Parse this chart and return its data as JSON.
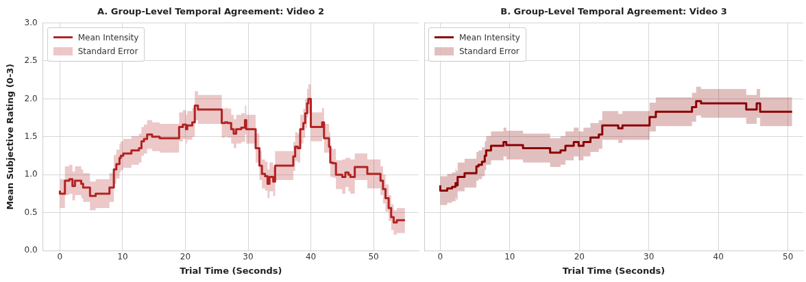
{
  "chart_data": [
    {
      "type": "step",
      "title": "A. Group-Level Temporal Agreement: Video 2",
      "xlabel": "Trial Time (Seconds)",
      "ylabel": "Mean Subjective Rating (0-3)",
      "xlim": [
        -2.7,
        57.2
      ],
      "xticks": [
        0,
        10,
        20,
        30,
        40,
        50
      ],
      "ylim": [
        0,
        3
      ],
      "yticks": [
        {
          "value": 0,
          "label": "0.0"
        },
        {
          "value": 0.5,
          "label": "0.5"
        },
        {
          "value": 1,
          "label": "1.0"
        },
        {
          "value": 1.5,
          "label": "1.5"
        },
        {
          "value": 2,
          "label": "2.0"
        },
        {
          "value": 2.5,
          "label": "2.5"
        },
        {
          "value": 3,
          "label": "3.0"
        }
      ],
      "grid": true,
      "legend": "top left",
      "line_style": "solid",
      "marker": "none",
      "annotations": [
        "Standard Error"
      ],
      "x": [
        0,
        0.8,
        1.5,
        2.0,
        2.4,
        3.4,
        3.7,
        4.8,
        5.7,
        7.9,
        8.6,
        9.0,
        9.5,
        9.7,
        10.1,
        11.4,
        12.6,
        13.0,
        13.4,
        13.9,
        14.7,
        15.9,
        19.0,
        19.6,
        20.1,
        20.3,
        21.1,
        21.5,
        22.0,
        25.8,
        26.3,
        26.7,
        27.3,
        27.7,
        28.1,
        28.9,
        29.5,
        29.7,
        31.2,
        31.8,
        32.2,
        32.7,
        33.1,
        33.4,
        34.0,
        34.3,
        37.2,
        37.5,
        37.9,
        38.3,
        38.8,
        39.1,
        39.4,
        39.6,
        40.0,
        41.8,
        42.1,
        42.9,
        43.1,
        43.5,
        44.0,
        45.0,
        45.5,
        46.0,
        46.3,
        47.0,
        49.0,
        51.1,
        51.5,
        51.9,
        52.4,
        52.8,
        53.2,
        53.7,
        54.4,
        55.0
      ],
      "series": [
        {
          "name": "Mean Intensity",
          "color": "#b22222",
          "lower": [
            0.6,
            0.56,
            0.73,
            0.75,
            0.66,
            0.73,
            0.69,
            0.64,
            0.53,
            0.56,
            0.64,
            0.88,
            0.95,
            1.03,
            1.06,
            1.09,
            1.13,
            1.16,
            1.25,
            1.28,
            1.34,
            1.31,
            1.29,
            1.44,
            1.47,
            1.41,
            1.46,
            1.5,
            1.72,
            1.67,
            1.49,
            1.5,
            1.49,
            1.41,
            1.35,
            1.41,
            1.43,
            1.53,
            1.41,
            1.16,
            0.93,
            0.82,
            0.79,
            0.69,
            0.78,
            0.72,
            0.93,
            1.05,
            1.18,
            1.16,
            1.41,
            1.49,
            1.62,
            1.75,
            1.81,
            1.44,
            1.5,
            1.29,
            1.18,
            0.97,
            0.96,
            0.81,
            0.75,
            0.84,
            0.78,
            0.75,
            0.93,
            0.82,
            0.73,
            0.62,
            0.51,
            0.39,
            0.27,
            0.21,
            0.23,
            0.23
          ],
          "upper": [
            0.98,
            0.94,
            1.11,
            1.13,
            1.04,
            1.11,
            1.07,
            1.02,
            0.91,
            0.94,
            1.02,
            1.26,
            1.33,
            1.41,
            1.44,
            1.47,
            1.51,
            1.54,
            1.63,
            1.66,
            1.72,
            1.69,
            1.67,
            1.82,
            1.85,
            1.79,
            1.84,
            1.88,
            2.1,
            2.05,
            1.87,
            1.88,
            1.87,
            1.79,
            1.73,
            1.79,
            1.81,
            1.91,
            1.79,
            1.54,
            1.31,
            1.2,
            1.17,
            1.07,
            1.16,
            1.1,
            1.31,
            1.43,
            1.56,
            1.54,
            1.79,
            1.87,
            2.0,
            2.13,
            2.19,
            1.82,
            1.88,
            1.67,
            1.56,
            1.35,
            1.34,
            1.19,
            1.2,
            1.22,
            1.22,
            1.2,
            1.28,
            1.2,
            1.11,
            1.0,
            0.87,
            0.73,
            0.61,
            0.53,
            0.56,
            0.56
          ],
          "values": [
            0.79,
            0.75,
            0.92,
            0.94,
            0.85,
            0.92,
            0.88,
            0.83,
            0.72,
            0.75,
            0.83,
            1.07,
            1.14,
            1.22,
            1.25,
            1.28,
            1.32,
            1.35,
            1.44,
            1.47,
            1.53,
            1.5,
            1.48,
            1.63,
            1.66,
            1.6,
            1.65,
            1.69,
            1.91,
            1.86,
            1.68,
            1.69,
            1.68,
            1.6,
            1.54,
            1.6,
            1.62,
            1.72,
            1.6,
            1.35,
            1.12,
            1.01,
            0.98,
            0.88,
            0.97,
            0.91,
            1.12,
            1.24,
            1.37,
            1.35,
            1.6,
            1.68,
            1.81,
            1.94,
            2.0,
            1.63,
            1.69,
            1.48,
            1.37,
            1.16,
            1.15,
            1.0,
            0.97,
            1.03,
            1.0,
            0.97,
            1.1,
            1.01,
            0.92,
            0.81,
            0.69,
            0.56,
            0.44,
            0.37,
            0.4,
            0.4
          ]
        }
      ]
    },
    {
      "type": "step",
      "title": "B. Group-Level Temporal Agreement: Video 3",
      "xlabel": "Trial Time (Seconds)",
      "xlim": [
        -2.3,
        52.2
      ],
      "xticks": [
        0,
        10,
        20,
        30,
        40,
        50
      ],
      "ylim": [
        0,
        3
      ],
      "yticks": [
        {
          "value": 0,
          "label": null
        },
        {
          "value": 0.5,
          "label": null
        },
        {
          "value": 1,
          "label": null
        },
        {
          "value": 1.5,
          "label": null
        },
        {
          "value": 2,
          "label": null
        },
        {
          "value": 2.5,
          "label": null
        },
        {
          "value": 3,
          "label": null
        }
      ],
      "tick_labels": "x",
      "grid": true,
      "legend": "top left",
      "line_style": "solid",
      "marker": "none",
      "annotations": [
        "Standard Error"
      ],
      "x": [
        0,
        1.0,
        1.7,
        2.2,
        2.3,
        2.5,
        3.5,
        5.2,
        5.5,
        6.0,
        6.4,
        6.6,
        7.3,
        9.1,
        9.5,
        11.9,
        15.8,
        17.3,
        18.0,
        19.2,
        19.9,
        20.6,
        21.6,
        22.8,
        23.3,
        25.6,
        26.2,
        30.1,
        31.0,
        36.2,
        36.8,
        37.5,
        44.0,
        45.5,
        46.0,
        46.8,
        50.6
      ],
      "series": [
        {
          "name": "Mean Intensity",
          "color": "#8b0000",
          "lower": [
            0.67,
            0.6,
            0.63,
            0.65,
            0.7,
            0.67,
            0.78,
            0.83,
            0.92,
            0.94,
            0.98,
            1.06,
            1.13,
            1.19,
            1.24,
            1.2,
            1.16,
            1.1,
            1.13,
            1.19,
            1.24,
            1.19,
            1.24,
            1.3,
            1.34,
            1.46,
            1.42,
            1.46,
            1.57,
            1.64,
            1.7,
            1.78,
            1.75,
            1.67,
            1.75,
            1.64,
            1.64
          ],
          "upper": [
            1.05,
            0.98,
            1.01,
            1.03,
            1.08,
            1.05,
            1.16,
            1.21,
            1.3,
            1.32,
            1.36,
            1.44,
            1.51,
            1.57,
            1.62,
            1.58,
            1.54,
            1.48,
            1.51,
            1.57,
            1.62,
            1.57,
            1.62,
            1.68,
            1.72,
            1.84,
            1.8,
            1.84,
            1.95,
            2.02,
            2.08,
            2.16,
            2.13,
            2.05,
            2.13,
            2.02,
            2.02
          ],
          "values": [
            0.86,
            0.79,
            0.82,
            0.84,
            0.89,
            0.86,
            0.97,
            1.02,
            1.11,
            1.13,
            1.17,
            1.25,
            1.32,
            1.38,
            1.43,
            1.39,
            1.35,
            1.29,
            1.32,
            1.38,
            1.43,
            1.38,
            1.43,
            1.49,
            1.53,
            1.65,
            1.61,
            1.65,
            1.76,
            1.83,
            1.89,
            1.97,
            1.94,
            1.86,
            1.94,
            1.83,
            1.83
          ]
        }
      ]
    }
  ]
}
